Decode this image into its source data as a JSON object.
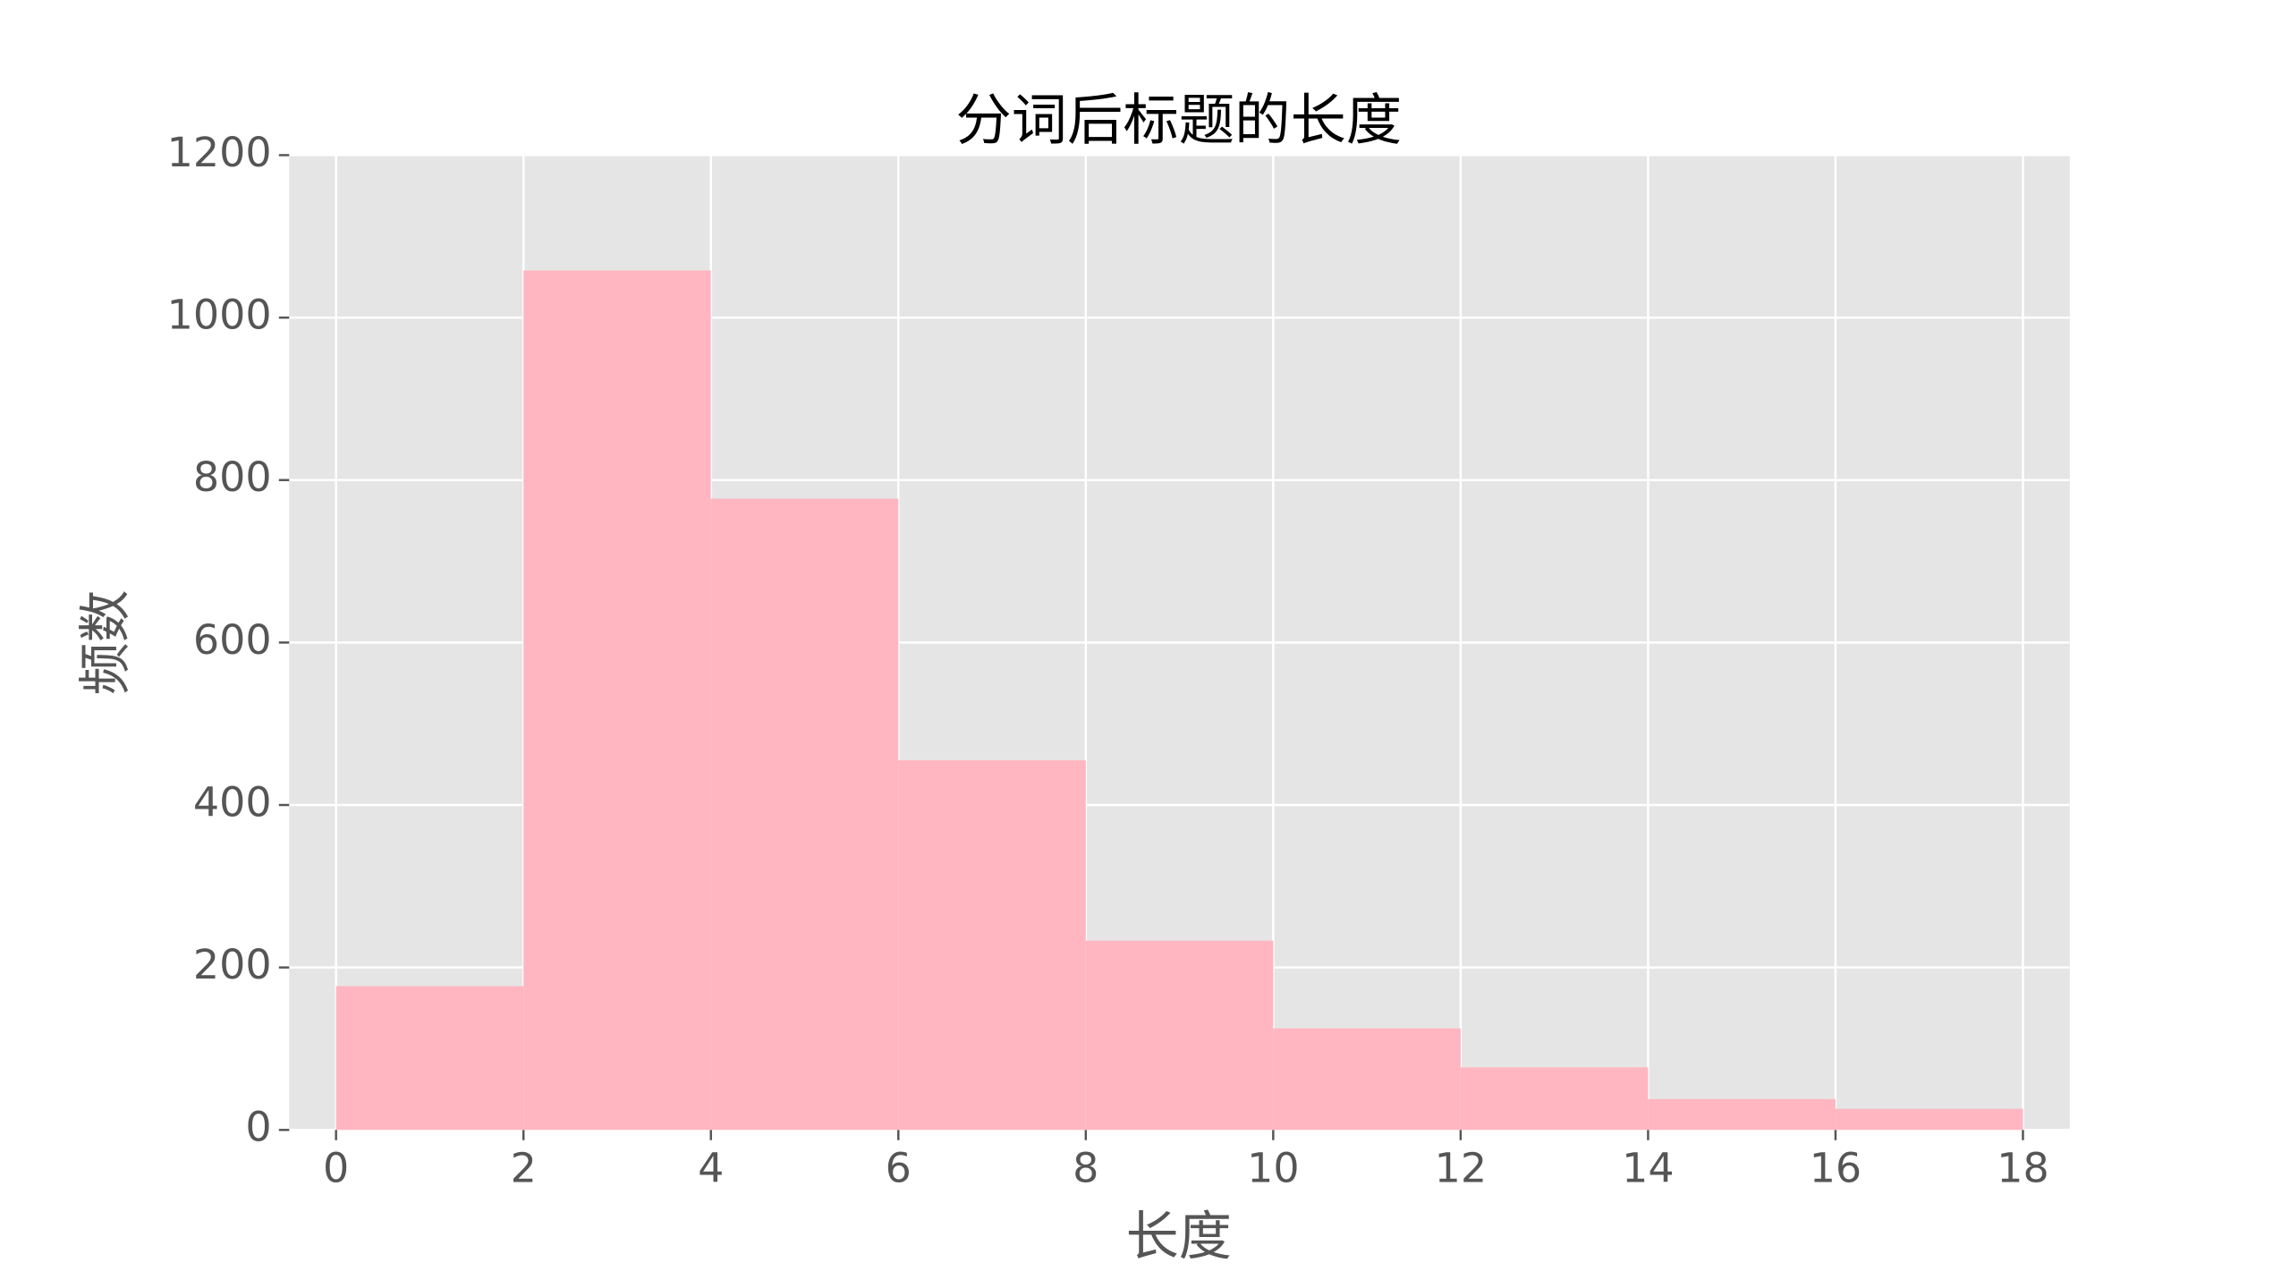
{
  "chart_data": {
    "type": "histogram",
    "title": "分词后标题的长度",
    "x_label": "长度",
    "y_label": "频数",
    "bins": [
      0,
      2,
      4,
      6,
      8,
      10,
      12,
      14,
      16,
      18
    ],
    "values": [
      177,
      1058,
      777,
      455,
      233,
      125,
      77,
      38,
      26
    ],
    "color": "#ffb6c1",
    "xlim": [
      -0.5,
      18.5
    ],
    "xticks": [
      0,
      2,
      4,
      6,
      8,
      10,
      12,
      14,
      16,
      18
    ],
    "ylim": [
      0,
      1200
    ],
    "yticks": [
      0,
      200,
      400,
      600,
      800,
      1000,
      1200
    ],
    "grid": true
  }
}
